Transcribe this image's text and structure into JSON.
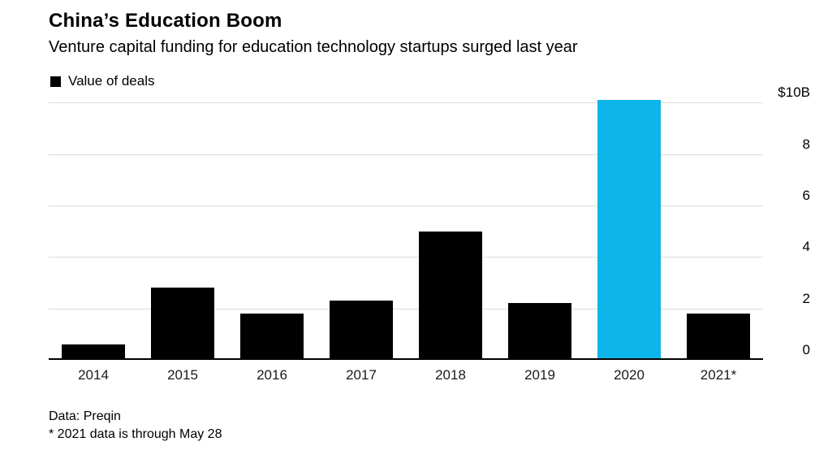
{
  "header": {
    "title": "China’s Education Boom",
    "subtitle": "Venture capital funding for education technology startups surged last year"
  },
  "legend": {
    "label": "Value of deals",
    "swatch_color": "#000000"
  },
  "footer": {
    "source": "Data: Preqin",
    "note": "* 2021 data is through May 28"
  },
  "chart_data": {
    "type": "bar",
    "title": "China’s Education Boom",
    "subtitle": "Venture capital funding for education technology startups surged last year",
    "categories": [
      "2014",
      "2015",
      "2016",
      "2017",
      "2018",
      "2019",
      "2020",
      "2021*"
    ],
    "series": [
      {
        "name": "Value of deals",
        "values": [
          0.6,
          2.8,
          1.8,
          2.3,
          5.0,
          2.2,
          10.1,
          1.8
        ]
      }
    ],
    "unit": "$B (USD billions)",
    "ylim": [
      0,
      10.2
    ],
    "yticks": [
      0,
      2,
      4,
      6,
      8,
      10
    ],
    "ytick_labels": [
      "0",
      "2",
      "4",
      "6",
      "8",
      "$10B"
    ],
    "grid": true,
    "axis_side": "right",
    "legend_position": "top-left",
    "bar_colors": {
      "default": "#000000",
      "highlight": "#0db5ea"
    },
    "highlight_category": "2020",
    "source": "Data: Preqin",
    "footnote": "* 2021 data is through May 28"
  }
}
